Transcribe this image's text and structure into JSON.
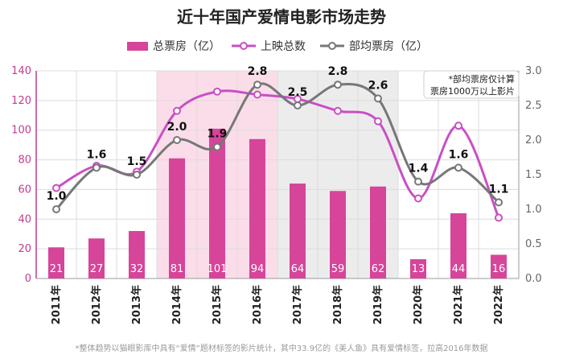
{
  "chart_data": {
    "type": "bar",
    "title": "近十年国产爱情电影市场走势",
    "categories": [
      "2011年",
      "2012年",
      "2013年",
      "2014年",
      "2015年",
      "2016年",
      "2017年",
      "2018年",
      "2019年",
      "2020年",
      "2021年",
      "2022年"
    ],
    "series": [
      {
        "name": "总票房（亿）",
        "type": "bar",
        "axis": "left",
        "color": "#d6459a",
        "values": [
          21,
          27,
          32,
          81,
          101,
          94,
          64,
          59,
          62,
          13,
          44,
          16
        ]
      },
      {
        "name": "上映总数",
        "type": "line",
        "axis": "left",
        "color": "#c94fc6",
        "values": [
          61,
          76,
          72,
          113,
          126,
          124,
          121,
          113,
          106,
          54,
          103,
          41
        ]
      },
      {
        "name": "部均票房（亿）",
        "type": "line",
        "axis": "right",
        "color": "#777777",
        "values": [
          1.0,
          1.6,
          1.5,
          2.0,
          1.9,
          2.8,
          2.5,
          2.8,
          2.6,
          1.4,
          1.6,
          1.1
        ]
      }
    ],
    "avg_labels": [
      "1.0",
      "1.6",
      "1.5",
      "2.0",
      "1.9",
      "2.8",
      "2.5",
      "2.8",
      "2.6",
      "1.4",
      "1.6",
      "1.1"
    ],
    "bar_labels": [
      "21",
      "27",
      "32",
      "81",
      "101",
      "94",
      "64",
      "59",
      "62",
      "13",
      "44",
      "16"
    ],
    "y_left": {
      "min": 0,
      "max": 140,
      "ticks": [
        "0",
        "20",
        "40",
        "60",
        "80",
        "100",
        "120",
        "140"
      ]
    },
    "y_right": {
      "min": 0,
      "max": 3.0,
      "ticks": [
        "0.0",
        "0.5",
        "1.0",
        "1.5",
        "2.0",
        "2.5",
        "3.0"
      ]
    },
    "highlight_bands": [
      {
        "from": "2014年",
        "to": "2016年",
        "color": "#fbdde9"
      },
      {
        "from": "2017年",
        "to": "2019年",
        "color": "#ececec"
      }
    ],
    "grid": true,
    "legend_position": "top",
    "note": [
      "*部均票房仅计算",
      "票房1000万以上影片"
    ],
    "footnote": "*整体趋势以猫眼影库中具有“爱情”题材标签的影片统计，其中33.9亿的《美人鱼》具有爱情标签，拉高2016年数据"
  }
}
